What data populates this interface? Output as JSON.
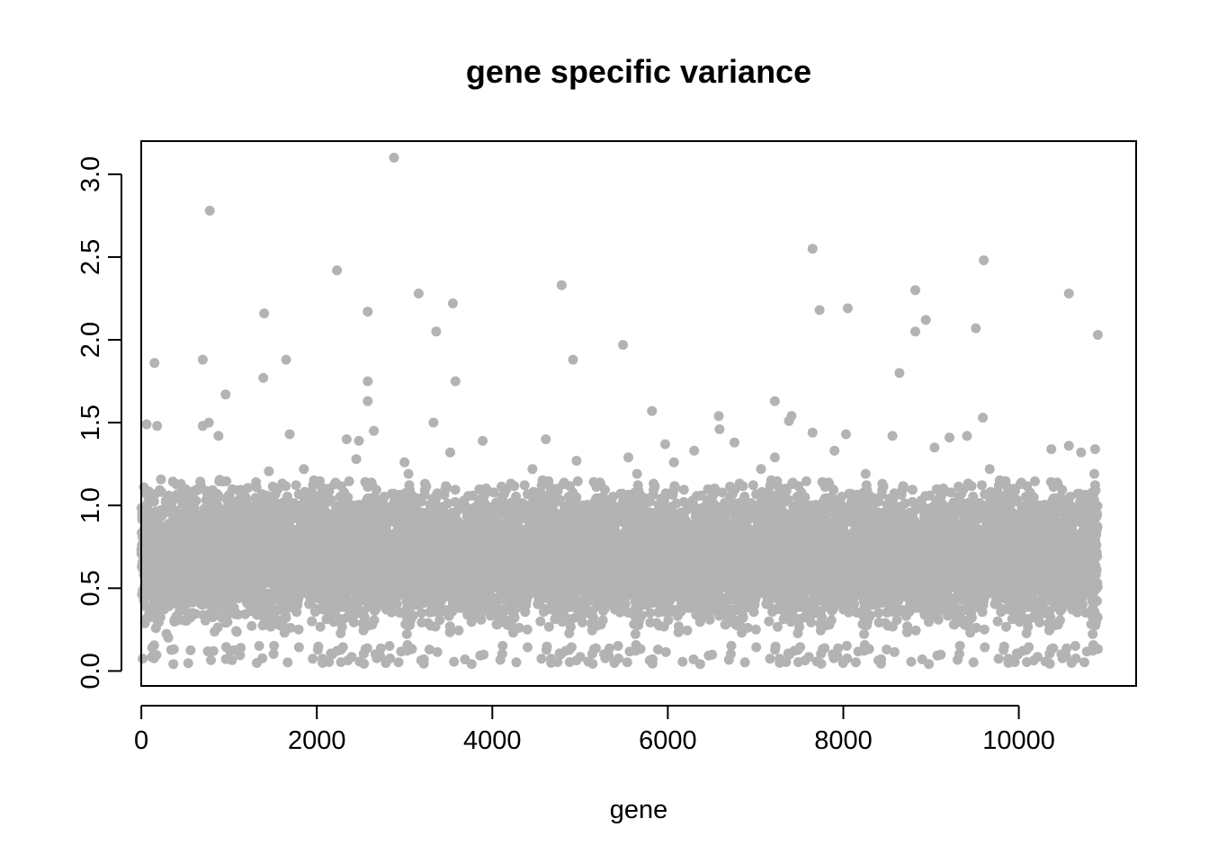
{
  "chart_data": {
    "type": "scatter",
    "title": "gene specific variance",
    "xlabel": "gene",
    "ylabel": "",
    "xlim": [
      -1.1,
      11337
    ],
    "ylim": [
      -0.09,
      3.2
    ],
    "x_ticks": [
      0,
      2000,
      4000,
      6000,
      8000,
      10000
    ],
    "x_tick_labels": [
      "0",
      "2000",
      "4000",
      "6000",
      "8000",
      "10000"
    ],
    "y_ticks": [
      0.0,
      0.5,
      1.0,
      1.5,
      2.0,
      2.5,
      3.0
    ],
    "y_tick_labels": [
      "0.0",
      "0.5",
      "1.0",
      "1.5",
      "2.0",
      "2.5",
      "3.0"
    ],
    "grid": false,
    "point_color": "#b3b3b3",
    "n_points": 10900,
    "bulk_range": [
      0.1,
      1.25
    ],
    "series": [
      {
        "points": [
          [
            2880,
            3.1
          ],
          [
            780,
            2.78
          ],
          [
            7650,
            2.55
          ],
          [
            9600,
            2.48
          ],
          [
            2230,
            2.42
          ],
          [
            4790,
            2.33
          ],
          [
            8820,
            2.3
          ],
          [
            3160,
            2.28
          ],
          [
            10570,
            2.28
          ],
          [
            3550,
            2.22
          ],
          [
            8050,
            2.19
          ],
          [
            7730,
            2.18
          ],
          [
            2580,
            2.17
          ],
          [
            1400,
            2.16
          ],
          [
            8940,
            2.12
          ],
          [
            9510,
            2.07
          ],
          [
            3360,
            2.05
          ],
          [
            8820,
            2.05
          ],
          [
            10900,
            2.03
          ],
          [
            5490,
            1.97
          ],
          [
            4920,
            1.88
          ],
          [
            700,
            1.88
          ],
          [
            1650,
            1.88
          ],
          [
            150,
            1.86
          ],
          [
            8640,
            1.8
          ],
          [
            1390,
            1.77
          ],
          [
            2580,
            1.75
          ],
          [
            3580,
            1.75
          ],
          [
            960,
            1.67
          ],
          [
            2580,
            1.63
          ],
          [
            7220,
            1.63
          ],
          [
            5820,
            1.57
          ],
          [
            7410,
            1.54
          ],
          [
            6580,
            1.54
          ],
          [
            9590,
            1.53
          ],
          [
            7380,
            1.51
          ],
          [
            3330,
            1.5
          ],
          [
            770,
            1.5
          ],
          [
            60,
            1.49
          ],
          [
            180,
            1.48
          ],
          [
            700,
            1.48
          ],
          [
            6590,
            1.46
          ],
          [
            2650,
            1.45
          ],
          [
            7650,
            1.44
          ],
          [
            8030,
            1.43
          ],
          [
            1690,
            1.43
          ],
          [
            880,
            1.42
          ],
          [
            8560,
            1.42
          ],
          [
            9410,
            1.42
          ],
          [
            9210,
            1.41
          ],
          [
            4610,
            1.4
          ],
          [
            2340,
            1.4
          ],
          [
            2480,
            1.39
          ],
          [
            3890,
            1.39
          ],
          [
            6760,
            1.38
          ],
          [
            5970,
            1.37
          ],
          [
            10570,
            1.36
          ],
          [
            9040,
            1.35
          ],
          [
            10370,
            1.34
          ],
          [
            10870,
            1.34
          ],
          [
            6300,
            1.33
          ],
          [
            7900,
            1.33
          ],
          [
            10710,
            1.32
          ],
          [
            3520,
            1.32
          ],
          [
            7220,
            1.29
          ],
          [
            5550,
            1.29
          ],
          [
            2450,
            1.28
          ],
          [
            4960,
            1.27
          ],
          [
            6070,
            1.26
          ],
          [
            3000,
            1.26
          ]
        ]
      }
    ]
  }
}
